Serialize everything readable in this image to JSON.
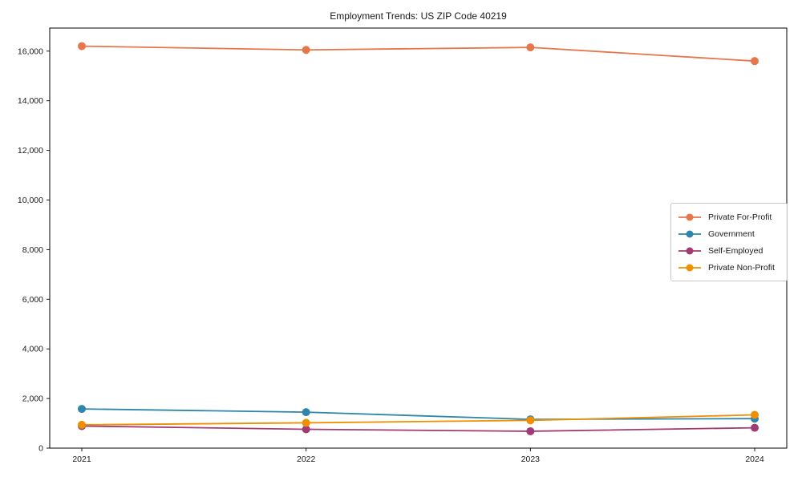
{
  "figure": {
    "background_color": "#ffffff",
    "text_color": "#1a1a1a",
    "axis_color": "#000000"
  },
  "chart_data": {
    "type": "line",
    "title": "Employment Trends: US ZIP Code 40219",
    "xlabel": "",
    "ylabel": "",
    "categories": [
      "2021",
      "2022",
      "2023",
      "2024"
    ],
    "series": [
      {
        "name": "Private For-Profit",
        "color": "#E8764B",
        "values": [
          16200,
          16050,
          16150,
          15600
        ]
      },
      {
        "name": "Government",
        "color": "#2E86AB",
        "values": [
          1580,
          1450,
          1160,
          1190
        ]
      },
      {
        "name": "Self-Employed",
        "color": "#A23B72",
        "values": [
          890,
          760,
          680,
          820
        ]
      },
      {
        "name": "Private Non-Profit",
        "color": "#F18F01",
        "values": [
          940,
          1020,
          1120,
          1340
        ]
      }
    ],
    "yticks": {
      "labels": [
        "0",
        "2,000",
        "4,000",
        "6,000",
        "8,000",
        "10,000",
        "12,000",
        "14,000",
        "16,000"
      ],
      "values": [
        0,
        2000,
        4000,
        6000,
        8000,
        10000,
        12000,
        14000,
        16000
      ]
    },
    "ylim": [
      0,
      16930
    ],
    "grid": false,
    "legend": {
      "position": "center-right",
      "border": true
    }
  }
}
